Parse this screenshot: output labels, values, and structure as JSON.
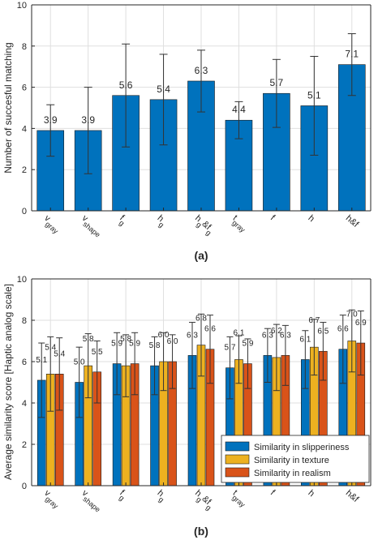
{
  "chart_data": [
    {
      "type": "bar",
      "panel_label": "(a)",
      "ylabel": "Number of succesful matching",
      "ylim": [
        0,
        10
      ],
      "yticks": [
        0,
        2,
        4,
        6,
        8,
        10
      ],
      "grid": true,
      "categories": [
        {
          "main": "v",
          "sub": "gray"
        },
        {
          "main": "v",
          "sub": "shape"
        },
        {
          "main": "f",
          "sub": "g"
        },
        {
          "main": "h",
          "sub": "g"
        },
        {
          "main": "h",
          "sub": "g",
          "suffix": "&f",
          "sub2": "g"
        },
        {
          "main": "t",
          "sub": "gray"
        },
        {
          "main": "f",
          "sub": ""
        },
        {
          "main": "h",
          "sub": ""
        },
        {
          "main": "h&f",
          "sub": ""
        }
      ],
      "series": [
        {
          "color": "#0072BD",
          "values": [
            3.9,
            3.9,
            5.6,
            5.4,
            6.3,
            4.4,
            5.7,
            5.1,
            7.1
          ],
          "labels": [
            "3.9",
            "3.9",
            "5.6",
            "5.4",
            "6.3",
            "4.4",
            "5.7",
            "5.1",
            "7.1"
          ],
          "err_low": [
            2.65,
            1.8,
            3.1,
            3.2,
            4.8,
            3.5,
            4.05,
            2.7,
            5.6
          ],
          "err_high": [
            5.15,
            6.0,
            8.1,
            7.6,
            7.8,
            5.3,
            7.35,
            7.5,
            8.6
          ]
        }
      ]
    },
    {
      "type": "bar",
      "panel_label": "(b)",
      "ylabel": "Average similarity score [Haptic analog scale]",
      "ylim": [
        0,
        10
      ],
      "yticks": [
        0,
        2,
        4,
        6,
        8,
        10
      ],
      "grid": true,
      "legend_position": "bottom-right",
      "categories": [
        {
          "main": "v",
          "sub": "gray"
        },
        {
          "main": "v",
          "sub": "shape"
        },
        {
          "main": "f",
          "sub": "g"
        },
        {
          "main": "h",
          "sub": "g"
        },
        {
          "main": "h",
          "sub": "g",
          "suffix": "&f",
          "sub2": "g"
        },
        {
          "main": "t",
          "sub": "gray"
        },
        {
          "main": "f",
          "sub": ""
        },
        {
          "main": "h",
          "sub": ""
        },
        {
          "main": "h&f",
          "sub": ""
        }
      ],
      "series": [
        {
          "name": "Similarity in slipperiness",
          "color": "#0072BD",
          "values": [
            5.1,
            5.0,
            5.9,
            5.8,
            6.3,
            5.7,
            6.3,
            6.1,
            6.6
          ],
          "labels": [
            "5.1",
            "5.0",
            "5.9",
            "5.8",
            "6.3",
            "5.7",
            "6.3",
            "6.1",
            "6.6"
          ],
          "err_low": [
            3.3,
            3.3,
            4.4,
            4.4,
            4.7,
            4.2,
            5.0,
            4.7,
            4.95
          ],
          "err_high": [
            6.9,
            6.7,
            7.4,
            7.2,
            7.9,
            7.2,
            7.6,
            7.5,
            8.25
          ]
        },
        {
          "name": "Similarity in texture",
          "color": "#EDB120",
          "values": [
            5.4,
            5.8,
            5.8,
            6.0,
            6.8,
            6.1,
            6.2,
            6.7,
            7.0
          ],
          "labels": [
            "5.4",
            "5.8",
            "5.8",
            "6.0",
            "6.8",
            "6.1",
            "6.2",
            "6.7",
            "7.0"
          ],
          "err_low": [
            3.6,
            4.25,
            4.3,
            4.6,
            5.3,
            4.95,
            4.6,
            5.35,
            5.5
          ],
          "err_high": [
            7.2,
            7.35,
            7.3,
            7.4,
            8.3,
            7.25,
            7.8,
            8.05,
            8.5
          ]
        },
        {
          "name": "Similarity in realism",
          "color": "#D95319",
          "values": [
            5.4,
            5.5,
            5.9,
            6.0,
            6.6,
            5.9,
            6.3,
            6.5,
            6.9
          ],
          "labels": [
            "5.4",
            "5.5",
            "5.9",
            "6.0",
            "6.6",
            "5.9",
            "6.3",
            "6.5",
            "6.9"
          ],
          "err_low": [
            3.65,
            4.0,
            4.4,
            4.7,
            4.95,
            4.7,
            4.85,
            5.1,
            5.35
          ],
          "err_high": [
            7.15,
            7.0,
            7.4,
            7.3,
            8.25,
            7.1,
            7.75,
            7.9,
            8.45
          ]
        }
      ]
    }
  ]
}
